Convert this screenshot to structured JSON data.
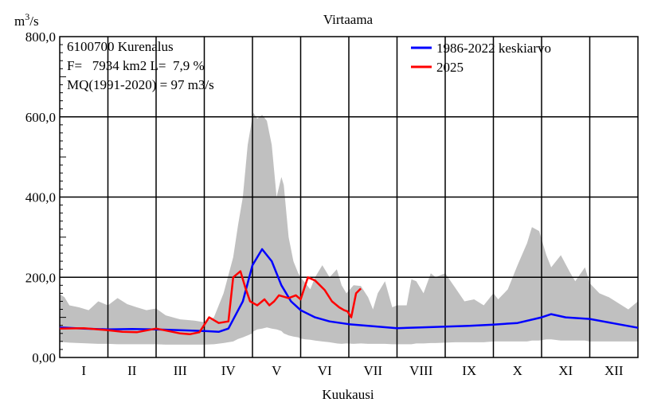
{
  "chart_data": {
    "type": "area",
    "title": "Virtaama",
    "xlabel": "Kuukausi",
    "ylabel": {
      "base": "m",
      "sup": "3",
      "tail": "/s"
    },
    "ylim": [
      0,
      800
    ],
    "yticks": [
      "0,00",
      "200,0",
      "400,0",
      "600,0",
      "800,0"
    ],
    "months": [
      "I",
      "II",
      "III",
      "IV",
      "V",
      "VI",
      "VII",
      "VIII",
      "IX",
      "X",
      "XI",
      "XII"
    ],
    "grid": true,
    "info_lines": [
      "6100700 Kurenalus",
      "F=   7934 km2 L=  7,9 %",
      "MQ(1991-2020) = 97 m3/s"
    ],
    "legend_position": "top-right",
    "series": [
      {
        "name": "1986-2022 keskiarvo",
        "color": "#0000ff",
        "x": [
          0,
          0.5,
          1,
          1.5,
          2,
          2.5,
          3,
          3.3,
          3.5,
          3.8,
          4.0,
          4.2,
          4.4,
          4.6,
          4.8,
          5.0,
          5.3,
          5.6,
          6.0,
          6.5,
          7.0,
          7.5,
          8.0,
          8.5,
          9.0,
          9.5,
          10.0,
          10.2,
          10.5,
          11.0,
          11.5,
          12.0
        ],
        "values": [
          75,
          72,
          70,
          71,
          70,
          68,
          66,
          64,
          72,
          140,
          230,
          270,
          240,
          180,
          140,
          118,
          100,
          90,
          83,
          78,
          73,
          75,
          77,
          79,
          82,
          86,
          100,
          108,
          100,
          96,
          85,
          74
        ]
      },
      {
        "name": "2025",
        "color": "#ff0000",
        "x": [
          0,
          0.5,
          1,
          1.3,
          1.6,
          2.0,
          2.3,
          2.5,
          2.7,
          2.9,
          3.1,
          3.3,
          3.5,
          3.6,
          3.75,
          3.85,
          3.95,
          4.1,
          4.25,
          4.35,
          4.45,
          4.55,
          4.75,
          4.9,
          5.0,
          5.15,
          5.3,
          5.5,
          5.65,
          5.8,
          5.9,
          5.97,
          6.05,
          6.15,
          6.25
        ],
        "values": [
          72,
          73,
          68,
          64,
          63,
          72,
          65,
          60,
          58,
          63,
          100,
          86,
          90,
          200,
          215,
          175,
          140,
          130,
          145,
          130,
          140,
          155,
          148,
          155,
          145,
          200,
          192,
          168,
          140,
          125,
          118,
          115,
          100,
          160,
          172
        ]
      },
      {
        "name": "",
        "color": "#c0c0c0",
        "x": [
          0,
          0.1,
          0.2,
          0.4,
          0.6,
          0.8,
          1.0,
          1.2,
          1.4,
          1.6,
          1.8,
          2.0,
          2.2,
          2.5,
          2.8,
          3.0,
          3.2,
          3.4,
          3.6,
          3.7,
          3.8,
          3.9,
          4.0,
          4.02,
          4.1,
          4.2,
          4.3,
          4.4,
          4.5,
          4.6,
          4.65,
          4.75,
          4.85,
          4.95,
          5.0,
          5.1,
          5.2,
          5.3,
          5.45,
          5.6,
          5.75,
          5.85,
          5.95,
          6.1,
          6.25,
          6.4,
          6.5,
          6.6,
          6.75,
          6.9,
          7.0,
          7.2,
          7.3,
          7.4,
          7.55,
          7.7,
          7.8,
          8.0,
          8.2,
          8.4,
          8.6,
          8.8,
          9.0,
          9.1,
          9.3,
          9.5,
          9.7,
          9.8,
          9.95,
          10.1,
          10.2,
          10.4,
          10.6,
          10.7,
          10.9,
          11.0,
          11.2,
          11.4,
          11.6,
          11.8,
          12.0
        ],
        "upper": [
          158,
          150,
          130,
          125,
          118,
          140,
          130,
          148,
          133,
          125,
          118,
          122,
          105,
          95,
          92,
          88,
          100,
          160,
          250,
          330,
          400,
          530,
          600,
          610,
          595,
          605,
          590,
          530,
          400,
          450,
          430,
          300,
          240,
          210,
          200,
          185,
          170,
          200,
          230,
          200,
          220,
          180,
          160,
          180,
          178,
          150,
          120,
          160,
          190,
          125,
          130,
          130,
          195,
          190,
          160,
          210,
          200,
          210,
          175,
          140,
          145,
          130,
          160,
          145,
          170,
          230,
          285,
          325,
          315,
          255,
          225,
          255,
          210,
          190,
          225,
          185,
          160,
          150,
          135,
          120,
          140
        ],
        "lower": [
          40,
          38,
          37,
          36,
          35,
          34,
          34,
          33,
          33,
          33,
          33,
          33,
          32,
          32,
          32,
          32,
          33,
          36,
          40,
          46,
          50,
          55,
          60,
          65,
          70,
          72,
          75,
          72,
          70,
          66,
          60,
          55,
          52,
          50,
          47,
          45,
          44,
          42,
          40,
          38,
          35,
          34,
          35,
          34,
          35,
          34,
          34,
          34,
          34,
          33,
          33,
          33,
          33,
          35,
          35,
          36,
          36,
          37,
          38,
          38,
          38,
          38,
          40,
          40,
          40,
          40,
          40,
          42,
          42,
          45,
          45,
          42,
          42,
          42,
          42,
          40,
          40,
          40,
          40,
          40,
          40
        ]
      }
    ]
  }
}
